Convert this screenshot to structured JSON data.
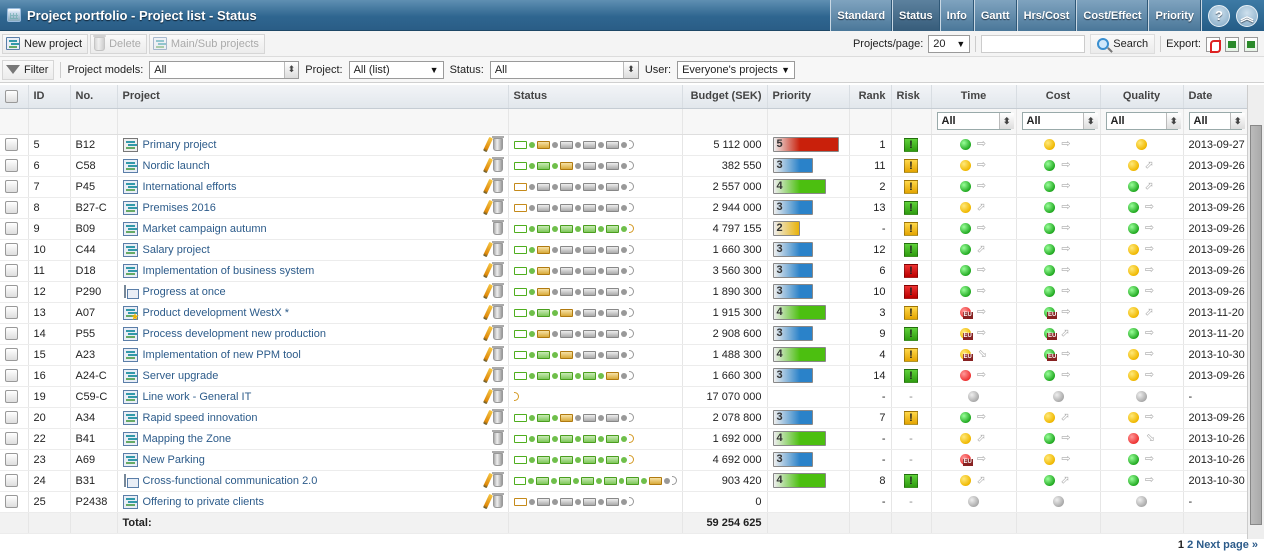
{
  "window": {
    "title": "Project portfolio - Project list - Status"
  },
  "view_tabs": [
    {
      "label": "Standard",
      "active": false
    },
    {
      "label": "Status",
      "active": true
    },
    {
      "label": "Info",
      "active": false
    },
    {
      "label": "Gantt",
      "active": false
    },
    {
      "label": "Hrs/Cost",
      "active": false
    },
    {
      "label": "Cost/Effect",
      "active": false
    },
    {
      "label": "Priority",
      "active": false
    }
  ],
  "header_buttons": {
    "help": "?",
    "collapse": "︽"
  },
  "toolbar": {
    "new_project": "New project",
    "delete": "Delete",
    "main_sub": "Main/Sub projects",
    "per_page_label": "Projects/page:",
    "per_page_value": "20",
    "search_value": "",
    "search_label": "Search",
    "export_label": "Export:"
  },
  "filters": {
    "filter_label": "Filter",
    "project_models_label": "Project models:",
    "project_models_value": "All",
    "project_label": "Project:",
    "project_value": "All (list)",
    "status_label": "Status:",
    "status_value": "All",
    "user_label": "User:",
    "user_value": "Everyone's projects"
  },
  "columns": {
    "id": "ID",
    "no": "No.",
    "project": "Project",
    "status": "Status",
    "budget": "Budget (SEK)",
    "priority": "Priority",
    "rank": "Rank",
    "risk": "Risk",
    "time": "Time",
    "cost": "Cost",
    "quality": "Quality",
    "date": "Date"
  },
  "column_filters": {
    "time": "All",
    "cost": "All",
    "quality": "All",
    "date": "All"
  },
  "colors": {
    "link": "#2c5b8a",
    "priority_5": "#c9200b",
    "priority_4": "#4cbf10",
    "priority_3": "#2a82c9",
    "priority_2": "#e8b000"
  },
  "rows": [
    {
      "id": "5",
      "no": "B12",
      "name": "Primary project",
      "icon": "main",
      "edit": true,
      "stages": "open-g,dot-g,y,dot,x,dot,x,dot,x,dot,end",
      "budget": "5 112 000",
      "priority": "5",
      "rank": "1",
      "risk": "green",
      "time": [
        "green",
        "right",
        false
      ],
      "cost": [
        "yellow",
        "right",
        false
      ],
      "quality": [
        "yellow",
        "",
        false
      ],
      "date": "2013-09-27"
    },
    {
      "id": "6",
      "no": "C58",
      "name": "Nordic launch",
      "icon": "proj",
      "edit": true,
      "stages": "open-g,dot-g,g,dot-g,y,dot,x,dot,x,dot,end",
      "budget": "382 550",
      "priority": "3",
      "rank": "11",
      "risk": "yellow",
      "time": [
        "yellow",
        "right",
        false
      ],
      "cost": [
        "green",
        "right",
        false
      ],
      "quality": [
        "yellow",
        "up",
        false
      ],
      "date": "2013-09-26"
    },
    {
      "id": "7",
      "no": "P45",
      "name": "International efforts",
      "icon": "proj",
      "edit": true,
      "stages": "open-o,dot,x,dot,x,dot,x,dot,x,dot,end",
      "budget": "2 557 000",
      "priority": "4",
      "rank": "2",
      "risk": "yellow",
      "time": [
        "green",
        "right",
        false
      ],
      "cost": [
        "green",
        "right",
        false
      ],
      "quality": [
        "green",
        "up",
        false
      ],
      "date": "2013-09-26"
    },
    {
      "id": "8",
      "no": "B27-C",
      "name": "Premises 2016",
      "icon": "proj",
      "edit": true,
      "stages": "open-o,dot,x,dot,x,dot,x,dot,x,dot,end",
      "budget": "2 944 000",
      "priority": "3",
      "rank": "13",
      "risk": "green",
      "time": [
        "yellow",
        "up",
        false
      ],
      "cost": [
        "green",
        "right",
        false
      ],
      "quality": [
        "green",
        "right",
        false
      ],
      "date": "2013-09-26"
    },
    {
      "id": "9",
      "no": "B09",
      "name": "Market campaign autumn",
      "icon": "proj",
      "edit": false,
      "stages": "open-g,dot-g,g,dot-g,g,dot-g,g,dot-g,g,dot-g,end-o",
      "budget": "4 797 155",
      "priority": "2",
      "rank": "-",
      "risk": "yellow",
      "time": [
        "green",
        "right",
        false
      ],
      "cost": [
        "green",
        "right",
        false
      ],
      "quality": [
        "green",
        "right",
        false
      ],
      "date": "2013-09-26"
    },
    {
      "id": "10",
      "no": "C44",
      "name": "Salary project",
      "icon": "proj",
      "edit": true,
      "stages": "open-g,dot-g,y,dot,x,dot,x,dot,x,dot,end",
      "budget": "1 660 300",
      "priority": "3",
      "rank": "12",
      "risk": "green",
      "time": [
        "green",
        "up",
        false
      ],
      "cost": [
        "green",
        "right",
        false
      ],
      "quality": [
        "yellow",
        "right",
        false
      ],
      "date": "2013-09-26"
    },
    {
      "id": "11",
      "no": "D18",
      "name": "Implementation of business system",
      "icon": "proj",
      "edit": true,
      "stages": "open-g,dot-g,y,dot,x,dot,x,dot,x,dot,end",
      "budget": "3 560 300",
      "priority": "3",
      "rank": "6",
      "risk": "red",
      "time": [
        "green",
        "right",
        false
      ],
      "cost": [
        "green",
        "right",
        false
      ],
      "quality": [
        "yellow",
        "right",
        false
      ],
      "date": "2013-09-26"
    },
    {
      "id": "12",
      "no": "P290",
      "name": "Progress at once",
      "icon": "sub",
      "edit": true,
      "stages": "open-g,dot-g,y,dot,x,dot,x,dot,x,dot,end",
      "budget": "1 890 300",
      "priority": "3",
      "rank": "10",
      "risk": "red",
      "time": [
        "green",
        "right",
        false
      ],
      "cost": [
        "green",
        "right",
        false
      ],
      "quality": [
        "green",
        "right",
        false
      ],
      "date": "2013-09-26"
    },
    {
      "id": "13",
      "no": "A07",
      "name": "Product development WestX *",
      "icon": "star",
      "edit": true,
      "stages": "open-g,dot-g,g,dot-g,y,dot,x,dot,x,dot,end",
      "budget": "1 915 300",
      "priority": "4",
      "rank": "3",
      "risk": "yellow",
      "time": [
        "red",
        "right",
        true
      ],
      "cost": [
        "green",
        "right",
        true
      ],
      "quality": [
        "yellow",
        "up",
        false
      ],
      "date": "2013-11-20"
    },
    {
      "id": "14",
      "no": "P55",
      "name": "Process development new production",
      "icon": "proj",
      "edit": true,
      "stages": "open-g,dot-g,y,dot,x,dot,x,dot,x,dot,end",
      "budget": "2 908 600",
      "priority": "3",
      "rank": "9",
      "risk": "green",
      "time": [
        "yellow",
        "right",
        true
      ],
      "cost": [
        "green",
        "up",
        true
      ],
      "quality": [
        "green",
        "right",
        false
      ],
      "date": "2013-11-20"
    },
    {
      "id": "15",
      "no": "A23",
      "name": "Implementation of new PPM tool",
      "icon": "proj",
      "edit": true,
      "stages": "open-g,dot-g,g,dot-g,y,dot,x,dot,x,dot,end",
      "budget": "1 488 300",
      "priority": "4",
      "rank": "4",
      "risk": "yellow",
      "time": [
        "yellow",
        "down",
        true
      ],
      "cost": [
        "green",
        "right",
        true
      ],
      "quality": [
        "yellow",
        "right",
        false
      ],
      "date": "2013-10-30"
    },
    {
      "id": "16",
      "no": "A24-C",
      "name": "Server upgrade",
      "icon": "proj",
      "edit": true,
      "stages": "open-g,dot-g,g,dot-g,g,dot-g,g,dot-g,y,dot,end",
      "budget": "1 660 300",
      "priority": "3",
      "rank": "14",
      "risk": "green",
      "time": [
        "red",
        "right",
        false
      ],
      "cost": [
        "green",
        "right",
        false
      ],
      "quality": [
        "yellow",
        "right",
        false
      ],
      "date": "2013-09-26"
    },
    {
      "id": "19",
      "no": "C59-C",
      "name": "Line work - General IT",
      "icon": "proj",
      "edit": true,
      "stages": "end-o",
      "budget": "17 070 000",
      "priority": "",
      "rank": "-",
      "risk": "-",
      "time": [
        "gray",
        "",
        false
      ],
      "cost": [
        "gray",
        "",
        false
      ],
      "quality": [
        "gray",
        "",
        false
      ],
      "date": "-"
    },
    {
      "id": "20",
      "no": "A34",
      "name": "Rapid speed innovation",
      "icon": "proj",
      "edit": true,
      "stages": "open-g,dot-g,g,dot-g,y,dot,x,dot,x,dot,end",
      "budget": "2 078 800",
      "priority": "3",
      "rank": "7",
      "risk": "yellow",
      "time": [
        "green",
        "right",
        false
      ],
      "cost": [
        "yellow",
        "up",
        false
      ],
      "quality": [
        "yellow",
        "right",
        false
      ],
      "date": "2013-09-26"
    },
    {
      "id": "22",
      "no": "B41",
      "name": "Mapping the Zone",
      "icon": "proj",
      "edit": false,
      "stages": "open-g,dot-g,g,dot-g,g,dot-g,g,dot-g,g,dot-g,end-o",
      "budget": "1 692 000",
      "priority": "4",
      "rank": "-",
      "risk": "-",
      "time": [
        "yellow",
        "up",
        false
      ],
      "cost": [
        "green",
        "right",
        false
      ],
      "quality": [
        "red",
        "down",
        false
      ],
      "date": "2013-10-26"
    },
    {
      "id": "23",
      "no": "A69",
      "name": "New Parking",
      "icon": "proj",
      "edit": false,
      "stages": "open-g,dot-g,g,dot-g,g,dot-g,g,dot-g,g,dot-g,end-o",
      "budget": "4 692 000",
      "priority": "3",
      "rank": "-",
      "risk": "-",
      "time": [
        "red",
        "right",
        true
      ],
      "cost": [
        "yellow",
        "right",
        false
      ],
      "quality": [
        "green",
        "right",
        false
      ],
      "date": "2013-10-26"
    },
    {
      "id": "24",
      "no": "B31",
      "name": "Cross-functional communication 2.0",
      "icon": "sub",
      "edit": true,
      "stages": "open-g,dot-g,g,dot-g,g,dot-g,g,dot-g,g,dot-g,g,dot-g,y,dot,end",
      "budget": "903 420",
      "priority": "4",
      "rank": "8",
      "risk": "green",
      "time": [
        "yellow",
        "up",
        false
      ],
      "cost": [
        "green",
        "up",
        false
      ],
      "quality": [
        "green",
        "right",
        false
      ],
      "date": "2013-10-30"
    },
    {
      "id": "25",
      "no": "P2438",
      "name": "Offering to private clients",
      "icon": "proj",
      "edit": true,
      "stages": "open-o,dot,x,dot,x,dot,x,dot,x,dot,end",
      "budget": "0",
      "priority": "",
      "rank": "-",
      "risk": "-",
      "time": [
        "gray",
        "",
        false
      ],
      "cost": [
        "gray",
        "",
        false
      ],
      "quality": [
        "gray",
        "",
        false
      ],
      "date": "-"
    }
  ],
  "total": {
    "label": "Total:",
    "budget": "59 254 625"
  },
  "pagination": {
    "current": "1",
    "pages": [
      "2"
    ],
    "next": "Next page »"
  }
}
